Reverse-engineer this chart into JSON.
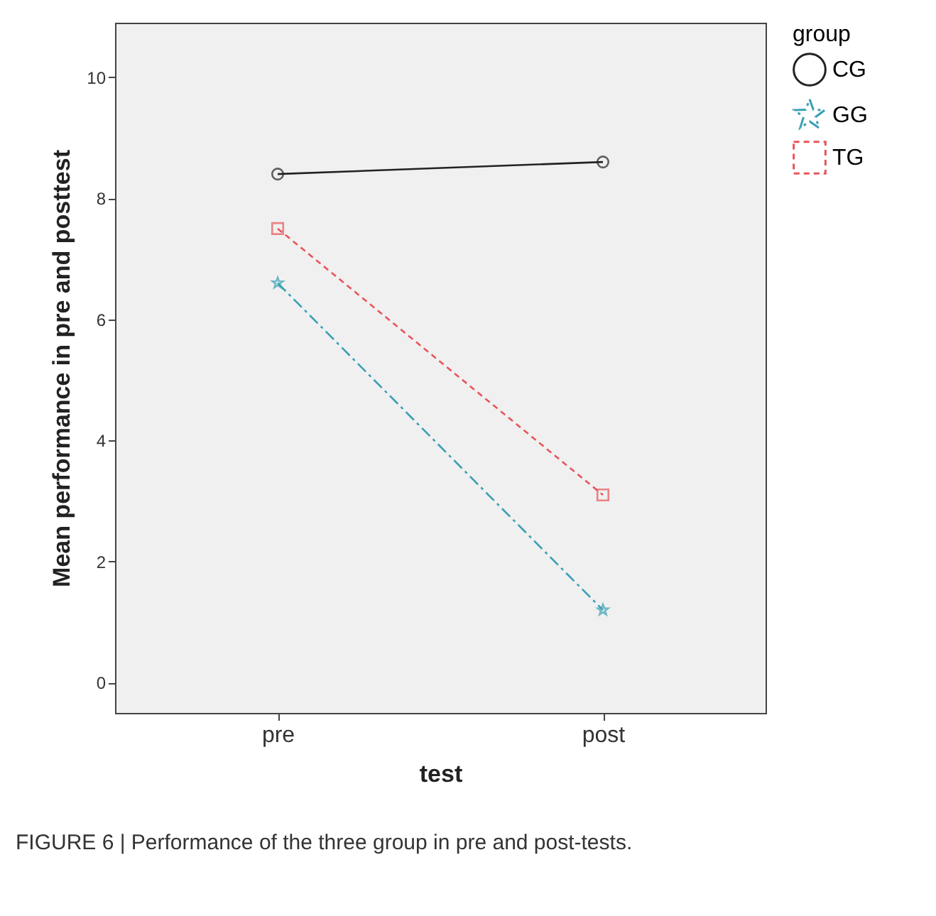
{
  "chart_data": {
    "type": "line",
    "xlabel": "test",
    "ylabel": "Mean performance in pre and posttest",
    "legend_title": "group",
    "legend": "right",
    "categories": [
      "pre",
      "post"
    ],
    "series": [
      {
        "name": "CG",
        "color": "#222222",
        "values": [
          8.4,
          8.6
        ],
        "marker": "circle",
        "line_style": "solid"
      },
      {
        "name": "GG",
        "color": "#3a9fb5",
        "values": [
          6.6,
          1.2
        ],
        "marker": "star",
        "line_style": "dashdot"
      },
      {
        "name": "TG",
        "color": "#e8545a",
        "values": [
          7.5,
          3.1
        ],
        "marker": "square",
        "line_style": "dashed"
      }
    ],
    "ylim": [
      -0.5,
      10.9
    ],
    "yticks": [
      0,
      2,
      4,
      6,
      8,
      10
    ],
    "grid": false,
    "annotations": [
      "FIGURE 6 | Performance of the three group in pre and post-tests."
    ]
  }
}
